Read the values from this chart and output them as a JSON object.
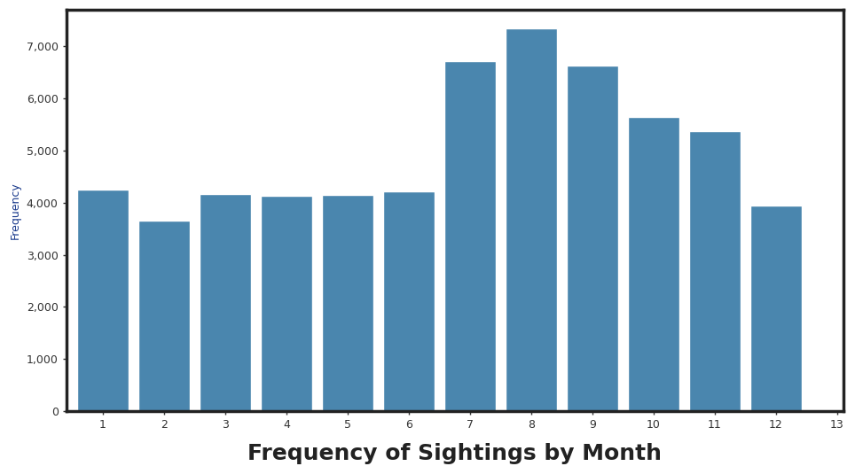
{
  "months": [
    1,
    2,
    3,
    4,
    5,
    6,
    7,
    8,
    9,
    10,
    11,
    12
  ],
  "values": [
    4250,
    3650,
    4170,
    4130,
    4140,
    4220,
    6720,
    7350,
    6630,
    5650,
    5380,
    3950
  ],
  "bar_color": "#4a86ae",
  "bar_edge_color": "white",
  "bar_edge_width": 1.0,
  "title": "Frequency of Sightings by Month",
  "ylabel": "Frequency",
  "title_fontsize": 18,
  "title_fontweight": "bold",
  "ylabel_fontsize": 9,
  "ylabel_color": "#1a3a8c",
  "xtick_labels": [
    "1",
    "2",
    "3",
    "4",
    "5",
    "6",
    "7",
    "8",
    "9",
    "10",
    "11",
    "12",
    "13"
  ],
  "xtick_positions": [
    1,
    2,
    3,
    4,
    5,
    6,
    7,
    8,
    9,
    10,
    11,
    12,
    13
  ],
  "ylim": [
    0,
    7700
  ],
  "xlim": [
    0.4,
    13.1
  ],
  "background_color": "#ffffff",
  "ax_background_color": "#ffffff",
  "outer_border_color": "#222222",
  "outer_border_linewidth": 2.5
}
